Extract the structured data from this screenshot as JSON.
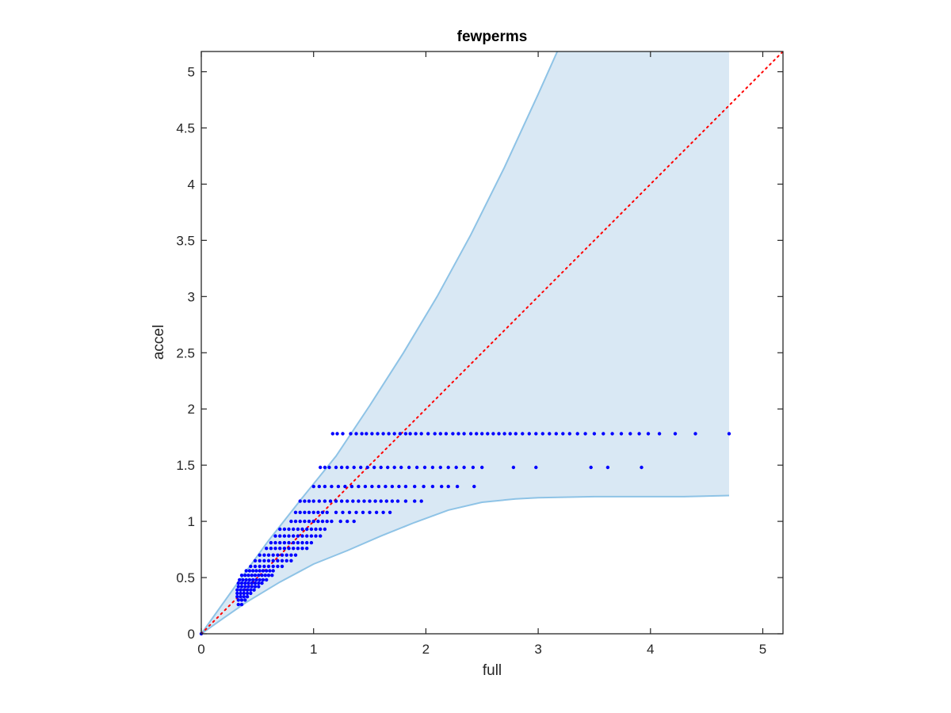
{
  "chart_data": {
    "type": "scatter",
    "title": "fewperms",
    "xlabel": "full",
    "ylabel": "accel",
    "xlim": [
      0,
      5.18
    ],
    "ylim": [
      0,
      5.18
    ],
    "xticks": [
      "0",
      "1",
      "2",
      "3",
      "4",
      "5"
    ],
    "yticks": [
      "0",
      "0.5",
      "1",
      "1.5",
      "2",
      "2.5",
      "3",
      "3.5",
      "4",
      "4.5",
      "5"
    ],
    "grid": false,
    "colors": {
      "band_fill": "#d9e8f4",
      "band_edge": "#8ec3e6",
      "points": "#0000ff",
      "reference_line": "#ff0000",
      "axes": "#262626"
    },
    "bounds_region": {
      "upper": [
        [
          0,
          0
        ],
        [
          0.3,
          0.42
        ],
        [
          0.6,
          0.83
        ],
        [
          0.9,
          1.21
        ],
        [
          1.2,
          1.58
        ],
        [
          1.5,
          2.03
        ],
        [
          1.8,
          2.5
        ],
        [
          2.1,
          3.0
        ],
        [
          2.4,
          3.55
        ],
        [
          2.7,
          4.15
        ],
        [
          3.0,
          4.8
        ],
        [
          3.17,
          5.18
        ],
        [
          4.7,
          5.18
        ]
      ],
      "lower": [
        [
          4.7,
          1.23
        ],
        [
          4.3,
          1.22
        ],
        [
          4.0,
          1.22
        ],
        [
          3.5,
          1.22
        ],
        [
          3.0,
          1.21
        ],
        [
          2.8,
          1.2
        ],
        [
          2.5,
          1.17
        ],
        [
          2.2,
          1.1
        ],
        [
          1.9,
          0.99
        ],
        [
          1.6,
          0.87
        ],
        [
          1.3,
          0.74
        ],
        [
          1.0,
          0.62
        ],
        [
          0.7,
          0.46
        ],
        [
          0.4,
          0.28
        ],
        [
          0.2,
          0.14
        ],
        [
          0,
          0
        ]
      ]
    },
    "reference_line": {
      "x": [
        0,
        5.18
      ],
      "y": [
        0,
        5.18
      ],
      "style": "dotted"
    },
    "series": [
      {
        "rows": [
          {
            "y": 1.78,
            "x": [
              1.17,
              1.21,
              1.26,
              1.33,
              1.38,
              1.43,
              1.47,
              1.52,
              1.57,
              1.62,
              1.67,
              1.72,
              1.77,
              1.82,
              1.86,
              1.91,
              1.96,
              2.02,
              2.08,
              2.13,
              2.18,
              2.24,
              2.29,
              2.34,
              2.4,
              2.45,
              2.5,
              2.55,
              2.6,
              2.65,
              2.7,
              2.75,
              2.8,
              2.86,
              2.92,
              2.98,
              3.04,
              3.1,
              3.16,
              3.22,
              3.28,
              3.35,
              3.42,
              3.5,
              3.58,
              3.66,
              3.74,
              3.82,
              3.9,
              3.98,
              4.08,
              4.22,
              4.4,
              4.7
            ]
          },
          {
            "y": 1.48,
            "x": [
              1.06,
              1.1,
              1.14,
              1.2,
              1.25,
              1.3,
              1.36,
              1.42,
              1.48,
              1.54,
              1.6,
              1.66,
              1.72,
              1.78,
              1.85,
              1.92,
              1.99,
              2.06,
              2.13,
              2.2,
              2.27,
              2.34,
              2.42,
              2.5,
              2.78,
              2.98,
              3.47,
              3.62,
              3.92
            ]
          },
          {
            "y": 1.31,
            "x": [
              1.0,
              1.05,
              1.1,
              1.16,
              1.22,
              1.28,
              1.34,
              1.4,
              1.46,
              1.52,
              1.58,
              1.64,
              1.7,
              1.76,
              1.82,
              1.9,
              1.98,
              2.06,
              2.14,
              2.2,
              2.28,
              2.43
            ]
          },
          {
            "y": 1.18,
            "x": [
              0.88,
              0.92,
              0.96,
              1.0,
              1.05,
              1.1,
              1.15,
              1.2,
              1.25,
              1.3,
              1.35,
              1.4,
              1.45,
              1.5,
              1.55,
              1.6,
              1.65,
              1.7,
              1.75,
              1.82,
              1.9,
              1.96
            ]
          },
          {
            "y": 1.08,
            "x": [
              0.84,
              0.88,
              0.92,
              0.96,
              1.0,
              1.04,
              1.08,
              1.12,
              1.2,
              1.26,
              1.32,
              1.38,
              1.44,
              1.5,
              1.56,
              1.62,
              1.68
            ]
          },
          {
            "y": 1.0,
            "x": [
              0.8,
              0.84,
              0.88,
              0.92,
              0.96,
              1.0,
              1.04,
              1.08,
              1.12,
              1.16,
              1.24,
              1.3,
              1.36
            ]
          },
          {
            "y": 0.93,
            "x": [
              0.7,
              0.74,
              0.78,
              0.82,
              0.86,
              0.9,
              0.94,
              0.98,
              1.02,
              1.06,
              1.1
            ]
          },
          {
            "y": 0.87,
            "x": [
              0.66,
              0.7,
              0.74,
              0.78,
              0.82,
              0.86,
              0.9,
              0.94,
              0.98,
              1.02,
              1.06
            ]
          },
          {
            "y": 0.81,
            "x": [
              0.62,
              0.66,
              0.7,
              0.74,
              0.78,
              0.82,
              0.86,
              0.9,
              0.94,
              0.98
            ]
          },
          {
            "y": 0.76,
            "x": [
              0.58,
              0.62,
              0.66,
              0.7,
              0.74,
              0.78,
              0.82,
              0.86,
              0.9,
              0.94
            ]
          },
          {
            "y": 0.7,
            "x": [
              0.52,
              0.56,
              0.6,
              0.64,
              0.68,
              0.72,
              0.76,
              0.8,
              0.84
            ]
          },
          {
            "y": 0.65,
            "x": [
              0.48,
              0.52,
              0.56,
              0.6,
              0.64,
              0.68,
              0.72,
              0.76,
              0.8
            ]
          },
          {
            "y": 0.6,
            "x": [
              0.44,
              0.48,
              0.52,
              0.56,
              0.6,
              0.64,
              0.68,
              0.72
            ]
          },
          {
            "y": 0.56,
            "x": [
              0.4,
              0.43,
              0.46,
              0.49,
              0.52,
              0.55,
              0.58,
              0.61,
              0.64
            ]
          },
          {
            "y": 0.52,
            "x": [
              0.36,
              0.39,
              0.42,
              0.45,
              0.48,
              0.51,
              0.54,
              0.57,
              0.6,
              0.63
            ]
          },
          {
            "y": 0.48,
            "x": [
              0.34,
              0.37,
              0.4,
              0.43,
              0.46,
              0.49,
              0.52,
              0.55,
              0.58
            ]
          },
          {
            "y": 0.45,
            "x": [
              0.33,
              0.36,
              0.39,
              0.42,
              0.45,
              0.48,
              0.51,
              0.54
            ]
          },
          {
            "y": 0.42,
            "x": [
              0.33,
              0.36,
              0.39,
              0.42,
              0.45,
              0.48,
              0.51
            ]
          },
          {
            "y": 0.39,
            "x": [
              0.32,
              0.35,
              0.38,
              0.41,
              0.44,
              0.47
            ]
          },
          {
            "y": 0.36,
            "x": [
              0.32,
              0.35,
              0.38,
              0.41,
              0.44
            ]
          },
          {
            "y": 0.33,
            "x": [
              0.32,
              0.35,
              0.38,
              0.41
            ]
          },
          {
            "y": 0.3,
            "x": [
              0.33,
              0.36,
              0.39
            ]
          },
          {
            "y": 0.26,
            "x": [
              0.33,
              0.36
            ]
          },
          {
            "y": 0.0,
            "x": [
              0.0
            ]
          }
        ]
      }
    ]
  }
}
